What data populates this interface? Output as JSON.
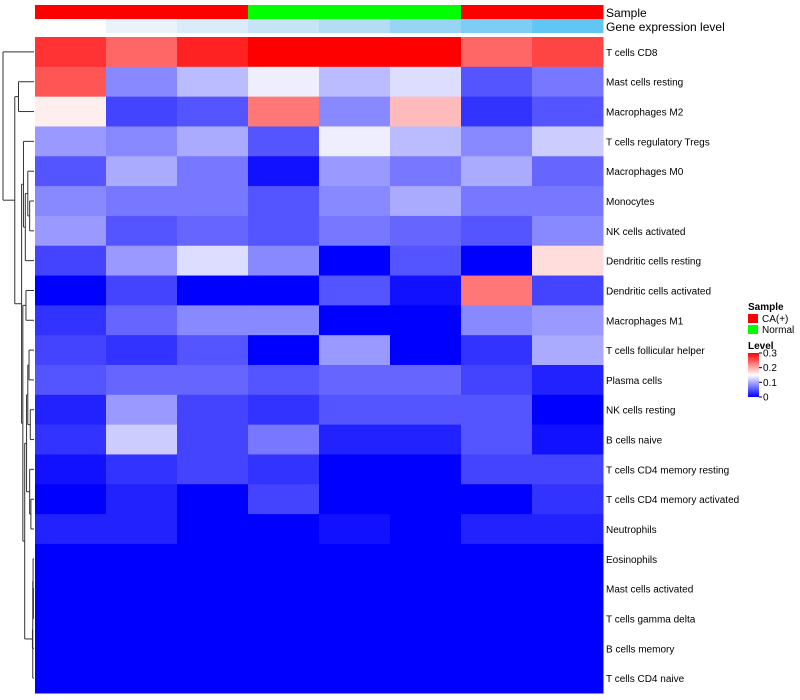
{
  "chart_data": {
    "type": "heatmap",
    "annotation_rows": [
      {
        "label": "Sample",
        "colors": [
          "#FF0000",
          "#FF0000",
          "#FF0000",
          "#00FF00",
          "#00FF00",
          "#00FF00",
          "#FF0000",
          "#FF0000"
        ]
      },
      {
        "label": "Gene expression level",
        "colors": [
          "#FFFFFF",
          "#EAF3FA",
          "#D9ECF8",
          "#C6E4F6",
          "#B3DDF5",
          "#98D4F4",
          "#7ECDF4",
          "#62C6F4"
        ]
      }
    ],
    "rows": [
      "T cells CD8",
      "Mast cells resting",
      "Macrophages M2",
      "T cells regulatory  Tregs",
      "Macrophages M0",
      "Monocytes",
      "NK cells activated",
      "Dendritic cells resting",
      "Dendritic cells activated",
      "Macrophages M1",
      "T cells follicular helper",
      "Plasma cells",
      "NK cells resting",
      "B cells naive",
      "T cells CD4 memory resting",
      "T cells CD4 memory activated",
      "Neutrophils",
      "Eosinophils",
      "Mast cells activated",
      "T cells gamma delta",
      "B cells memory",
      "T cells CD4 naive"
    ],
    "values": [
      [
        0.27,
        0.24,
        0.28,
        0.3,
        0.3,
        0.3,
        0.24,
        0.26
      ],
      [
        0.25,
        0.08,
        0.11,
        0.14,
        0.11,
        0.13,
        0.05,
        0.07
      ],
      [
        0.16,
        0.04,
        0.05,
        0.23,
        0.08,
        0.19,
        0.03,
        0.05
      ],
      [
        0.09,
        0.08,
        0.1,
        0.05,
        0.14,
        0.11,
        0.08,
        0.12
      ],
      [
        0.05,
        0.1,
        0.07,
        0.01,
        0.09,
        0.07,
        0.1,
        0.06
      ],
      [
        0.08,
        0.07,
        0.07,
        0.05,
        0.08,
        0.1,
        0.07,
        0.07
      ],
      [
        0.09,
        0.05,
        0.06,
        0.05,
        0.07,
        0.06,
        0.05,
        0.08
      ],
      [
        0.04,
        0.09,
        0.13,
        0.08,
        0.0,
        0.05,
        0.0,
        0.17
      ],
      [
        0.0,
        0.04,
        0.0,
        0.0,
        0.05,
        0.01,
        0.23,
        0.04
      ],
      [
        0.03,
        0.06,
        0.08,
        0.08,
        0.0,
        0.0,
        0.08,
        0.09
      ],
      [
        0.04,
        0.03,
        0.05,
        0.0,
        0.09,
        0.0,
        0.03,
        0.1
      ],
      [
        0.05,
        0.06,
        0.06,
        0.05,
        0.06,
        0.06,
        0.04,
        0.02
      ],
      [
        0.02,
        0.09,
        0.04,
        0.03,
        0.05,
        0.05,
        0.05,
        0.0
      ],
      [
        0.03,
        0.12,
        0.04,
        0.07,
        0.02,
        0.02,
        0.05,
        0.01
      ],
      [
        0.01,
        0.03,
        0.04,
        0.03,
        0.0,
        0.0,
        0.04,
        0.04
      ],
      [
        0.0,
        0.02,
        0.0,
        0.04,
        0.0,
        0.0,
        0.0,
        0.03
      ],
      [
        0.02,
        0.02,
        0.0,
        0.0,
        0.01,
        0.0,
        0.02,
        0.02
      ],
      [
        0.0,
        0.0,
        0.0,
        0.0,
        0.0,
        0.0,
        0.0,
        0.0
      ],
      [
        0.0,
        0.0,
        0.0,
        0.0,
        0.0,
        0.0,
        0.0,
        0.0
      ],
      [
        0.0,
        0.0,
        0.0,
        0.0,
        0.0,
        0.0,
        0.0,
        0.0
      ],
      [
        0.0,
        0.0,
        0.0,
        0.0,
        0.0,
        0.0,
        0.0,
        0.0
      ],
      [
        0.0,
        0.0,
        0.0,
        0.0,
        0.0,
        0.0,
        0.0,
        0.0
      ]
    ],
    "color_scale": {
      "min": 0,
      "mid": 0.15,
      "max": 0.3,
      "low_color": "#0000FF",
      "mid_color": "#FFFFFF",
      "high_color": "#FF0000"
    },
    "dendrogram_merges": [
      [
        18,
        19
      ],
      [
        17,
        22
      ],
      [
        21,
        23
      ],
      [
        20,
        24
      ],
      [
        15,
        16
      ],
      [
        14,
        26
      ],
      [
        12,
        13
      ],
      [
        10,
        11
      ],
      [
        28,
        29
      ],
      [
        27,
        30
      ],
      [
        25,
        31
      ],
      [
        8,
        9
      ],
      [
        5,
        6
      ],
      [
        4,
        34
      ],
      [
        35,
        7
      ],
      [
        3,
        36
      ],
      [
        33,
        32
      ],
      [
        37,
        38
      ],
      [
        1,
        2
      ],
      [
        40,
        39
      ],
      [
        0,
        41
      ]
    ],
    "dendrogram_heights": [
      0.02,
      0.03,
      0.04,
      0.05,
      0.1,
      0.14,
      0.12,
      0.16,
      0.2,
      0.24,
      0.3,
      0.26,
      0.14,
      0.2,
      0.28,
      0.34,
      0.36,
      0.4,
      0.5,
      0.62,
      1.0
    ],
    "legend": {
      "sample_title": "Sample",
      "sample_items": [
        {
          "label": "CA(+)",
          "color": "#FF0000"
        },
        {
          "label": "Normal",
          "color": "#00FF00"
        }
      ],
      "level_title": "Level",
      "level_ticks": [
        "0.3",
        "0.2",
        "0.1",
        "0"
      ],
      "level_tick_values": [
        0.3,
        0.2,
        0.1,
        0
      ]
    }
  }
}
